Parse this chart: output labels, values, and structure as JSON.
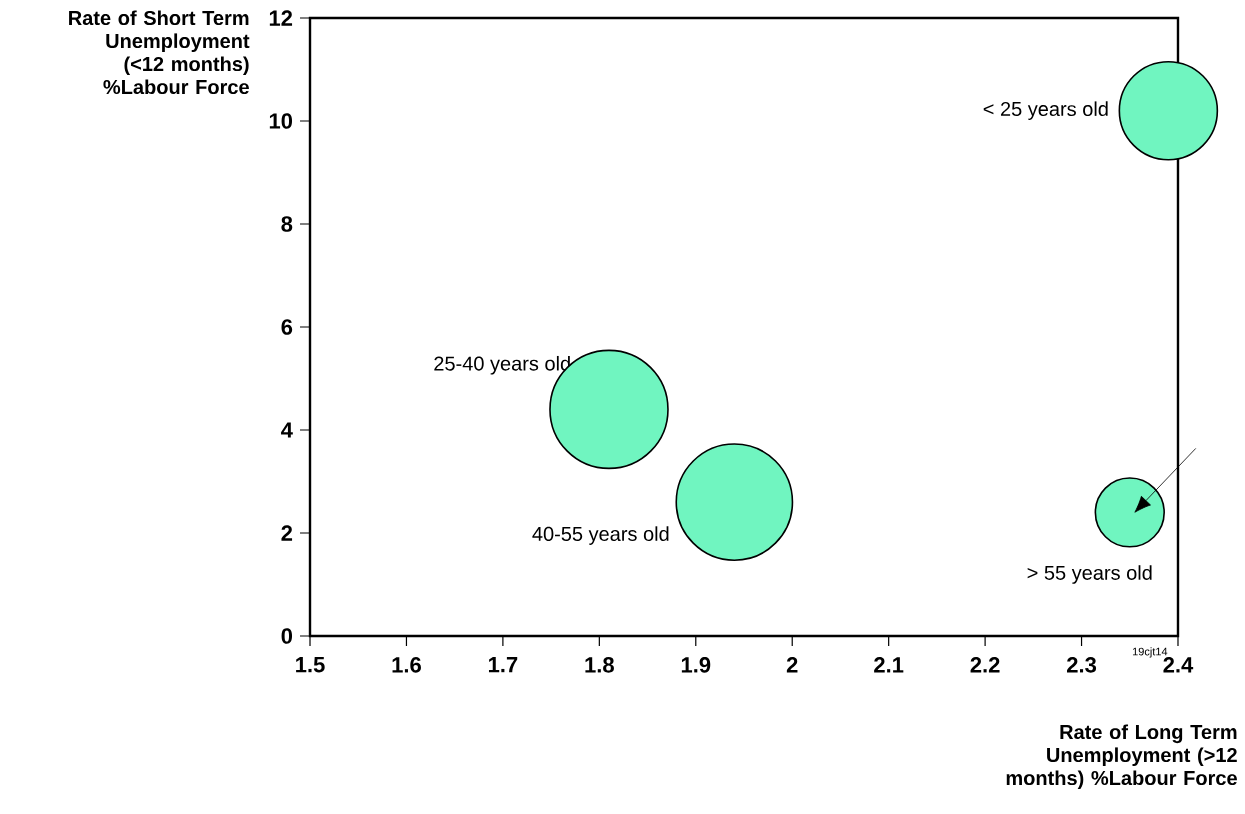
{
  "chart_data": {
    "type": "bubble",
    "xlabel": "Rate of Long Term Unemployment (>12 months) %Labour Force",
    "ylabel": "Rate of Short Term Unemployment (<12 months) %Labour Force",
    "x": [
      2.39,
      1.81,
      1.94,
      2.35
    ],
    "values": [
      10.2,
      4.4,
      2.6,
      2.4
    ],
    "sizes": [
      0.69,
      1,
      0.97,
      0.34
    ],
    "color": "#70f5c0",
    "xlim": [
      1.5,
      2.4
    ],
    "ylim": [
      0,
      12
    ],
    "xticks": [
      1.5,
      1.6,
      1.7,
      1.8,
      1.9,
      2,
      2.1,
      2.2,
      2.3,
      2.4
    ],
    "yticks": [
      0,
      2,
      4,
      6,
      8,
      10,
      12
    ],
    "annotations": [
      "< 25 years old",
      "25-40 years old",
      "40-55 years old",
      "> 55 years old",
      "19cjt14"
    ]
  }
}
